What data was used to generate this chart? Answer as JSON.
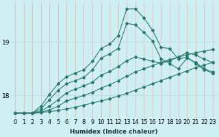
{
  "title": "",
  "xlabel": "Humidex (Indice chaleur)",
  "ylabel": "",
  "bg_color": "#cff0f0",
  "grid_color_h": "#b8dede",
  "grid_color_v": "#e8b8b8",
  "line_color": "#2a7a6a",
  "yticks": [
    18,
    19
  ],
  "xticks": [
    0,
    1,
    2,
    3,
    4,
    5,
    6,
    7,
    8,
    9,
    10,
    11,
    12,
    13,
    14,
    15,
    16,
    17,
    18,
    19,
    20,
    21,
    22,
    23
  ],
  "xlim": [
    -0.5,
    23.5
  ],
  "ylim": [
    17.58,
    19.75
  ],
  "series": [
    [
      17.67,
      17.67,
      17.67,
      17.68,
      17.7,
      17.72,
      17.75,
      17.78,
      17.82,
      17.86,
      17.9,
      17.94,
      17.99,
      18.04,
      18.1,
      18.16,
      18.22,
      18.28,
      18.34,
      18.4,
      18.46,
      18.52,
      18.57,
      18.62
    ],
    [
      17.67,
      17.67,
      17.67,
      17.69,
      17.73,
      17.8,
      17.9,
      17.95,
      18.0,
      18.06,
      18.14,
      18.2,
      18.28,
      18.36,
      18.44,
      18.5,
      18.56,
      18.62,
      18.67,
      18.72,
      18.76,
      18.8,
      18.83,
      18.86
    ],
    [
      17.67,
      17.67,
      17.67,
      17.71,
      17.8,
      17.92,
      18.05,
      18.12,
      18.18,
      18.25,
      18.38,
      18.45,
      18.54,
      18.65,
      18.72,
      18.68,
      18.64,
      18.6,
      18.65,
      18.72,
      18.8,
      18.76,
      18.68,
      18.62
    ],
    [
      17.67,
      17.67,
      17.67,
      17.75,
      17.92,
      18.1,
      18.22,
      18.28,
      18.34,
      18.48,
      18.7,
      18.78,
      18.88,
      19.35,
      19.32,
      19.18,
      19.02,
      18.68,
      18.6,
      18.5,
      18.7,
      18.62,
      18.5,
      18.44
    ],
    [
      17.67,
      17.67,
      17.67,
      17.8,
      18.02,
      18.22,
      18.35,
      18.42,
      18.48,
      18.64,
      18.88,
      18.96,
      19.12,
      19.62,
      19.62,
      19.45,
      19.22,
      18.9,
      18.88,
      18.68,
      18.72,
      18.6,
      18.48,
      18.42
    ]
  ],
  "marker": "D",
  "markersize": 2.0,
  "linewidth": 0.8,
  "tick_fontsize": 6.0,
  "xlabel_fontsize": 6.5
}
